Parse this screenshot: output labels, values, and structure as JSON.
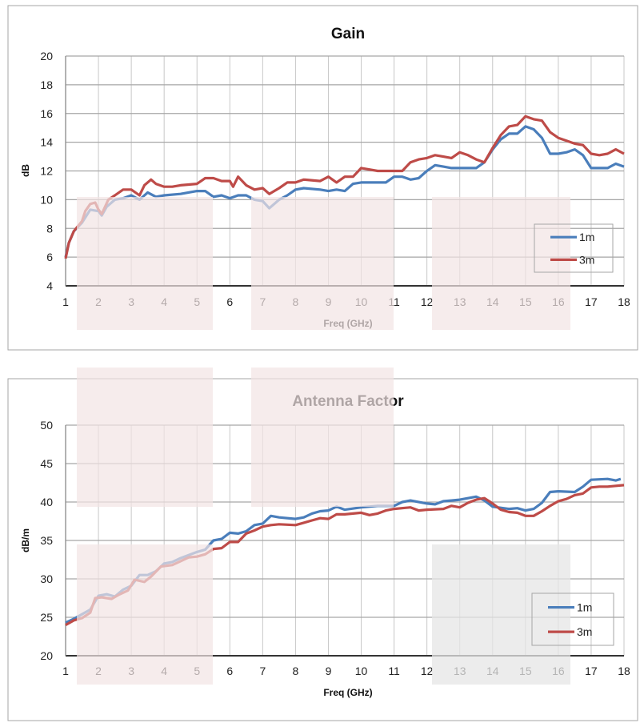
{
  "chart_data": [
    {
      "type": "line",
      "title": "Gain",
      "xlabel": "Freq (GHz)",
      "ylabel": "dB",
      "xlim": [
        1,
        18
      ],
      "ylim": [
        4,
        20
      ],
      "xticks": [
        1,
        2,
        3,
        4,
        5,
        6,
        7,
        8,
        9,
        10,
        11,
        12,
        13,
        14,
        15,
        16,
        17,
        18
      ],
      "yticks": [
        4,
        6,
        8,
        10,
        12,
        14,
        16,
        18,
        20
      ],
      "grid": true,
      "legend": "bottom-right",
      "series": [
        {
          "name": "1m",
          "color": "#4a7ebb",
          "x": [
            1,
            1.1,
            1.25,
            1.5,
            1.75,
            2,
            2.1,
            2.25,
            2.5,
            2.75,
            3,
            3.25,
            3.5,
            3.75,
            4,
            4.5,
            5,
            5.25,
            5.5,
            5.75,
            6,
            6.25,
            6.5,
            6.75,
            7,
            7.2,
            7.5,
            7.75,
            8,
            8.25,
            8.75,
            9,
            9.25,
            9.5,
            9.75,
            10,
            10.5,
            10.75,
            11,
            11.25,
            11.5,
            11.75,
            12,
            12.25,
            12.5,
            12.75,
            13,
            13.5,
            13.75,
            14,
            14.25,
            14.5,
            14.75,
            15,
            15.25,
            15.5,
            15.75,
            16,
            16.25,
            16.5,
            16.75,
            17,
            17.5,
            17.75,
            18
          ],
          "y": [
            6.0,
            7.0,
            7.8,
            8.4,
            9.3,
            9.2,
            8.9,
            9.5,
            10.0,
            10.1,
            10.3,
            10.0,
            10.5,
            10.2,
            10.3,
            10.4,
            10.6,
            10.6,
            10.2,
            10.3,
            10.1,
            10.3,
            10.3,
            10.0,
            9.9,
            9.4,
            10.0,
            10.3,
            10.7,
            10.8,
            10.7,
            10.6,
            10.7,
            10.6,
            11.1,
            11.2,
            11.2,
            11.2,
            11.6,
            11.6,
            11.4,
            11.5,
            12.0,
            12.4,
            12.3,
            12.2,
            12.2,
            12.2,
            12.6,
            13.5,
            14.2,
            14.6,
            14.6,
            15.1,
            14.9,
            14.3,
            13.2,
            13.2,
            13.3,
            13.5,
            13.1,
            12.2,
            12.2,
            12.5,
            12.3
          ]
        },
        {
          "name": "3m",
          "color": "#be4b48",
          "x": [
            1,
            1.1,
            1.25,
            1.5,
            1.6,
            1.75,
            1.9,
            2,
            2.1,
            2.3,
            2.5,
            2.75,
            3,
            3.25,
            3.4,
            3.6,
            3.75,
            4,
            4.25,
            4.5,
            5,
            5.25,
            5.5,
            5.75,
            6,
            6.1,
            6.25,
            6.5,
            6.75,
            7,
            7.2,
            7.5,
            7.75,
            8,
            8.25,
            8.75,
            9,
            9.25,
            9.5,
            9.75,
            10,
            10.25,
            10.5,
            11,
            11.25,
            11.5,
            11.75,
            12,
            12.25,
            12.5,
            12.75,
            13,
            13.25,
            13.5,
            13.75,
            14,
            14.25,
            14.5,
            14.75,
            15,
            15.25,
            15.5,
            15.75,
            16,
            16.25,
            16.5,
            16.75,
            17,
            17.25,
            17.5,
            17.75,
            18
          ],
          "y": [
            5.9,
            7.0,
            7.8,
            8.5,
            9.2,
            9.7,
            9.8,
            9.3,
            9.0,
            10.0,
            10.3,
            10.7,
            10.7,
            10.3,
            11.0,
            11.4,
            11.1,
            10.9,
            10.9,
            11.0,
            11.1,
            11.5,
            11.5,
            11.3,
            11.3,
            10.9,
            11.6,
            11.0,
            10.7,
            10.8,
            10.4,
            10.8,
            11.2,
            11.2,
            11.4,
            11.3,
            11.6,
            11.2,
            11.6,
            11.6,
            12.2,
            12.1,
            12.0,
            12.0,
            12.0,
            12.6,
            12.8,
            12.9,
            13.1,
            13.0,
            12.9,
            13.3,
            13.1,
            12.8,
            12.6,
            13.6,
            14.5,
            15.1,
            15.2,
            15.8,
            15.6,
            15.5,
            14.7,
            14.3,
            14.1,
            13.9,
            13.8,
            13.2,
            13.1,
            13.2,
            13.5,
            13.2
          ]
        }
      ]
    },
    {
      "type": "line",
      "title": "Antenna Factor",
      "xlabel": "Freq (GHz)",
      "ylabel": "dB/m",
      "xlim": [
        1,
        18
      ],
      "ylim": [
        20,
        50
      ],
      "xticks": [
        1,
        2,
        3,
        4,
        5,
        6,
        7,
        8,
        9,
        10,
        11,
        12,
        13,
        14,
        15,
        16,
        17,
        18
      ],
      "yticks": [
        20,
        25,
        30,
        35,
        40,
        45,
        50
      ],
      "grid": true,
      "legend": "bottom-right",
      "series": [
        {
          "name": "1m",
          "color": "#4a7ebb",
          "x": [
            1,
            1.25,
            1.5,
            1.75,
            2,
            2.25,
            2.5,
            2.75,
            3,
            3.25,
            3.5,
            3.75,
            4,
            4.25,
            4.5,
            5,
            5.25,
            5.5,
            5.75,
            6,
            6.25,
            6.5,
            6.75,
            7,
            7.25,
            7.5,
            8,
            8.25,
            8.5,
            8.75,
            9,
            9.25,
            9.5,
            10,
            10.5,
            11,
            11.25,
            11.5,
            12,
            12.25,
            12.5,
            12.75,
            13,
            13.5,
            13.75,
            14,
            14.5,
            14.75,
            15,
            15.25,
            15.5,
            15.75,
            16,
            16.5,
            16.75,
            17,
            17.5,
            17.75,
            17.9
          ],
          "y": [
            24.3,
            24.8,
            25.4,
            26.0,
            27.8,
            28.0,
            27.7,
            28.6,
            29.1,
            30.5,
            30.5,
            31.0,
            32.0,
            32.2,
            32.7,
            33.5,
            33.8,
            35.0,
            35.2,
            36.0,
            35.9,
            36.2,
            37.0,
            37.2,
            38.2,
            38.0,
            37.8,
            38.0,
            38.5,
            38.8,
            38.9,
            39.4,
            39.0,
            39.3,
            39.5,
            39.5,
            40.0,
            40.2,
            39.8,
            39.7,
            40.1,
            40.2,
            40.3,
            40.7,
            40.2,
            39.4,
            39.1,
            39.2,
            38.9,
            39.1,
            39.9,
            41.3,
            41.4,
            41.3,
            42.0,
            42.9,
            43.0,
            42.8,
            43.0
          ]
        },
        {
          "name": "3m",
          "color": "#be4b48",
          "x": [
            1,
            1.25,
            1.5,
            1.75,
            1.9,
            2.1,
            2.4,
            2.6,
            2.9,
            3.1,
            3.4,
            3.6,
            3.9,
            4.25,
            4.5,
            4.75,
            5,
            5.25,
            5.5,
            5.75,
            6,
            6.25,
            6.5,
            6.75,
            7,
            7.25,
            7.5,
            8,
            8.25,
            8.5,
            8.75,
            9,
            9.25,
            9.5,
            10,
            10.25,
            10.5,
            10.75,
            11,
            11.5,
            11.75,
            12,
            12.5,
            12.75,
            13,
            13.25,
            13.5,
            13.75,
            14,
            14.25,
            14.5,
            14.75,
            15,
            15.25,
            15.5,
            15.75,
            16,
            16.25,
            16.5,
            16.75,
            17,
            17.25,
            17.5,
            18
          ],
          "y": [
            24.0,
            24.6,
            24.9,
            25.6,
            27.5,
            27.6,
            27.4,
            27.9,
            28.5,
            29.9,
            29.6,
            30.3,
            31.6,
            31.8,
            32.3,
            32.8,
            32.9,
            33.2,
            33.9,
            34.0,
            34.8,
            34.8,
            35.9,
            36.3,
            36.8,
            37.0,
            37.1,
            37.0,
            37.3,
            37.6,
            37.9,
            37.8,
            38.4,
            38.4,
            38.6,
            38.3,
            38.5,
            38.9,
            39.1,
            39.3,
            38.9,
            39.0,
            39.1,
            39.5,
            39.3,
            39.9,
            40.3,
            40.5,
            39.8,
            39.0,
            38.7,
            38.6,
            38.2,
            38.2,
            38.8,
            39.5,
            40.1,
            40.4,
            40.9,
            41.1,
            41.9,
            42.0,
            42.0,
            42.2
          ]
        }
      ]
    }
  ]
}
